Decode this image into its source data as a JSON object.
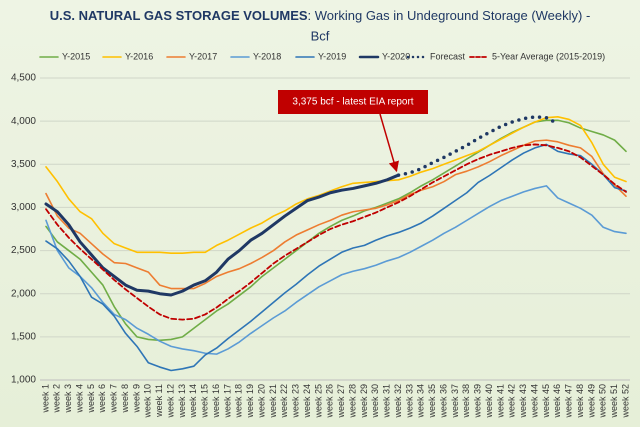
{
  "chart_data": {
    "type": "line",
    "title_bold": "U.S. NATURAL GAS STORAGE VOLUMES",
    "title": ": Working Gas in Undeground Storage (Weekly) -",
    "title_line2": "Bcf",
    "annotation": {
      "text": "3,375 bcf - latest EIA report",
      "category_index": 31,
      "value": 3375
    },
    "categories": [
      "week 1",
      "week 2",
      "week 3",
      "week 4",
      "week 5",
      "week 6",
      "week 7",
      "week 8",
      "week 9",
      "week 10",
      "week 11",
      "week 12",
      "week 13",
      "week 14",
      "week 15",
      "week 16",
      "week 17",
      "week 18",
      "week 19",
      "week 20",
      "week 21",
      "week 22",
      "week 23",
      "week 24",
      "week 25",
      "week 26",
      "week 27",
      "week 28",
      "week 29",
      "week 30",
      "week 31",
      "week 32",
      "week 33",
      "week 34",
      "week 35",
      "week 36",
      "week 37",
      "week 38",
      "week 39",
      "week 40",
      "week 41",
      "week 42",
      "week 43",
      "week 44",
      "week 45",
      "week 46",
      "week 47",
      "week 48",
      "week 49",
      "week 50",
      "week 51",
      "week 52"
    ],
    "ylim": [
      1000,
      4500
    ],
    "yticks": [
      {
        "value": 1000,
        "label": "1,000"
      },
      {
        "value": 1500,
        "label": "1,500"
      },
      {
        "value": 2000,
        "label": "2,000"
      },
      {
        "value": 2500,
        "label": "2,500"
      },
      {
        "value": 3000,
        "label": "3,000"
      },
      {
        "value": 3500,
        "label": "3,500"
      },
      {
        "value": 4000,
        "label": "4,000"
      },
      {
        "value": 4500,
        "label": "4,500"
      }
    ],
    "grid": true,
    "legend": "top",
    "series": [
      {
        "name": "Y-2015",
        "color": "#70ad47",
        "style": "solid",
        "line_width": 1.6,
        "values": [
          2780,
          2600,
          2500,
          2400,
          2250,
          2100,
          1850,
          1650,
          1500,
          1470,
          1460,
          1470,
          1500,
          1600,
          1700,
          1800,
          1880,
          1980,
          2080,
          2200,
          2300,
          2400,
          2500,
          2600,
          2700,
          2780,
          2850,
          2900,
          2960,
          3000,
          3050,
          3100,
          3170,
          3250,
          3320,
          3400,
          3480,
          3560,
          3640,
          3720,
          3800,
          3870,
          3930,
          3990,
          4010,
          4010,
          3980,
          3920,
          3880,
          3840,
          3780,
          3650
        ]
      },
      {
        "name": "Y-2016",
        "color": "#ffc000",
        "style": "solid",
        "line_width": 1.6,
        "values": [
          3470,
          3300,
          3100,
          2950,
          2870,
          2700,
          2580,
          2530,
          2480,
          2480,
          2480,
          2470,
          2470,
          2480,
          2480,
          2560,
          2620,
          2690,
          2760,
          2820,
          2900,
          2960,
          3040,
          3100,
          3140,
          3190,
          3240,
          3280,
          3290,
          3300,
          3310,
          3320,
          3360,
          3410,
          3450,
          3500,
          3550,
          3600,
          3650,
          3720,
          3790,
          3860,
          3930,
          3990,
          4040,
          4050,
          4020,
          3950,
          3750,
          3500,
          3350,
          3300
        ]
      },
      {
        "name": "Y-2017",
        "color": "#ed7d31",
        "style": "solid",
        "line_width": 1.6,
        "values": [
          3160,
          2900,
          2760,
          2700,
          2580,
          2460,
          2360,
          2350,
          2300,
          2250,
          2100,
          2060,
          2060,
          2060,
          2120,
          2200,
          2250,
          2290,
          2350,
          2420,
          2500,
          2600,
          2680,
          2740,
          2800,
          2850,
          2910,
          2950,
          2970,
          2990,
          3030,
          3080,
          3150,
          3200,
          3240,
          3300,
          3380,
          3420,
          3470,
          3530,
          3600,
          3660,
          3720,
          3770,
          3780,
          3760,
          3720,
          3690,
          3590,
          3390,
          3260,
          3130
        ]
      },
      {
        "name": "Y-2018",
        "color": "#5b9bd5",
        "style": "solid",
        "line_width": 1.6,
        "values": [
          2850,
          2500,
          2300,
          2200,
          2070,
          1900,
          1760,
          1700,
          1600,
          1530,
          1450,
          1390,
          1360,
          1340,
          1310,
          1300,
          1360,
          1440,
          1540,
          1630,
          1720,
          1800,
          1900,
          1990,
          2080,
          2150,
          2220,
          2260,
          2290,
          2330,
          2380,
          2420,
          2480,
          2550,
          2620,
          2700,
          2770,
          2850,
          2930,
          3010,
          3080,
          3130,
          3180,
          3220,
          3250,
          3110,
          3050,
          2990,
          2910,
          2770,
          2720,
          2700
        ]
      },
      {
        "name": "Y-2019",
        "color": "#2e75b6",
        "style": "solid",
        "line_width": 1.6,
        "values": [
          2610,
          2520,
          2380,
          2200,
          1960,
          1880,
          1740,
          1540,
          1390,
          1200,
          1150,
          1110,
          1130,
          1160,
          1290,
          1370,
          1480,
          1580,
          1680,
          1790,
          1900,
          2010,
          2110,
          2220,
          2320,
          2400,
          2480,
          2530,
          2560,
          2620,
          2670,
          2710,
          2760,
          2820,
          2900,
          2990,
          3080,
          3170,
          3290,
          3370,
          3460,
          3550,
          3630,
          3690,
          3730,
          3650,
          3620,
          3600,
          3500,
          3380,
          3230,
          3190
        ]
      },
      {
        "name": "Y-2020",
        "color": "#1f3864",
        "style": "solid",
        "line_width": 3,
        "values": [
          3040,
          2950,
          2800,
          2600,
          2450,
          2300,
          2200,
          2100,
          2040,
          2030,
          2000,
          1985,
          2030,
          2100,
          2150,
          2250,
          2400,
          2500,
          2620,
          2700,
          2800,
          2900,
          2990,
          3080,
          3120,
          3170,
          3200,
          3220,
          3250,
          3280,
          3320,
          3375,
          null,
          null,
          null,
          null,
          null,
          null,
          null,
          null,
          null,
          null,
          null,
          null,
          null,
          null,
          null,
          null,
          null,
          null,
          null,
          null
        ]
      },
      {
        "name": "Forecast",
        "color": "#1f3864",
        "style": "dotted",
        "line_width": 3.5,
        "values": [
          null,
          null,
          null,
          null,
          null,
          null,
          null,
          null,
          null,
          null,
          null,
          null,
          null,
          null,
          null,
          null,
          null,
          null,
          null,
          null,
          null,
          null,
          null,
          null,
          null,
          null,
          null,
          null,
          null,
          null,
          null,
          3375,
          3400,
          3450,
          3520,
          3580,
          3650,
          3720,
          3800,
          3870,
          3940,
          3990,
          4030,
          4050,
          4040,
          3970,
          null,
          null,
          null,
          null,
          null,
          null
        ]
      },
      {
        "name": "5-Year Average (2015-2019)",
        "color": "#c00000",
        "style": "dashed",
        "line_width": 1.8,
        "values": [
          2980,
          2800,
          2650,
          2520,
          2400,
          2280,
          2160,
          2050,
          1950,
          1850,
          1760,
          1710,
          1700,
          1710,
          1760,
          1840,
          1940,
          2030,
          2130,
          2240,
          2350,
          2440,
          2520,
          2600,
          2680,
          2750,
          2800,
          2840,
          2890,
          2940,
          3000,
          3060,
          3130,
          3210,
          3290,
          3360,
          3430,
          3500,
          3560,
          3610,
          3650,
          3690,
          3720,
          3730,
          3720,
          3690,
          3650,
          3580,
          3480,
          3380,
          3270,
          3180
        ]
      }
    ]
  }
}
